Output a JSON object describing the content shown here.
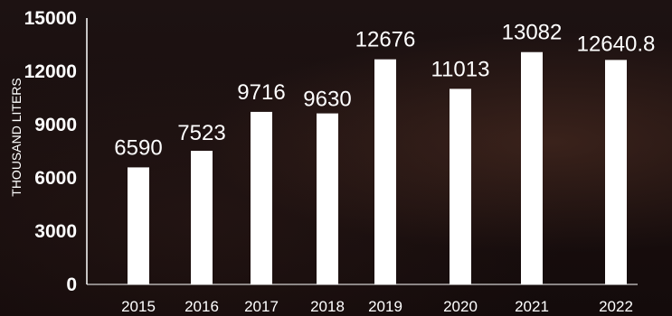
{
  "chart_data": {
    "type": "bar",
    "ylabel": "THOUSAND LITERS",
    "xlabel": "",
    "ylim": [
      0,
      15000
    ],
    "yticks": [
      "0",
      "3000",
      "6000",
      "9000",
      "12000",
      "15000"
    ],
    "ytick_values": [
      0,
      3000,
      6000,
      9000,
      12000,
      15000
    ],
    "categories": [
      "2015",
      "2016",
      "2017",
      "2018",
      "2019",
      "2020",
      "2021",
      "2022"
    ],
    "values": [
      6590,
      7523,
      9716,
      9630,
      12676,
      11013,
      13082,
      12640.8
    ],
    "value_labels": [
      "6590",
      "7523",
      "9716",
      "9630",
      "12676",
      "11013",
      "13082",
      "12640.8"
    ],
    "grid": false,
    "legend": "none",
    "colors": {
      "bar": "#ffffff",
      "text": "#ffffff",
      "axis": "#ffffff",
      "background": "#140c0c"
    }
  }
}
